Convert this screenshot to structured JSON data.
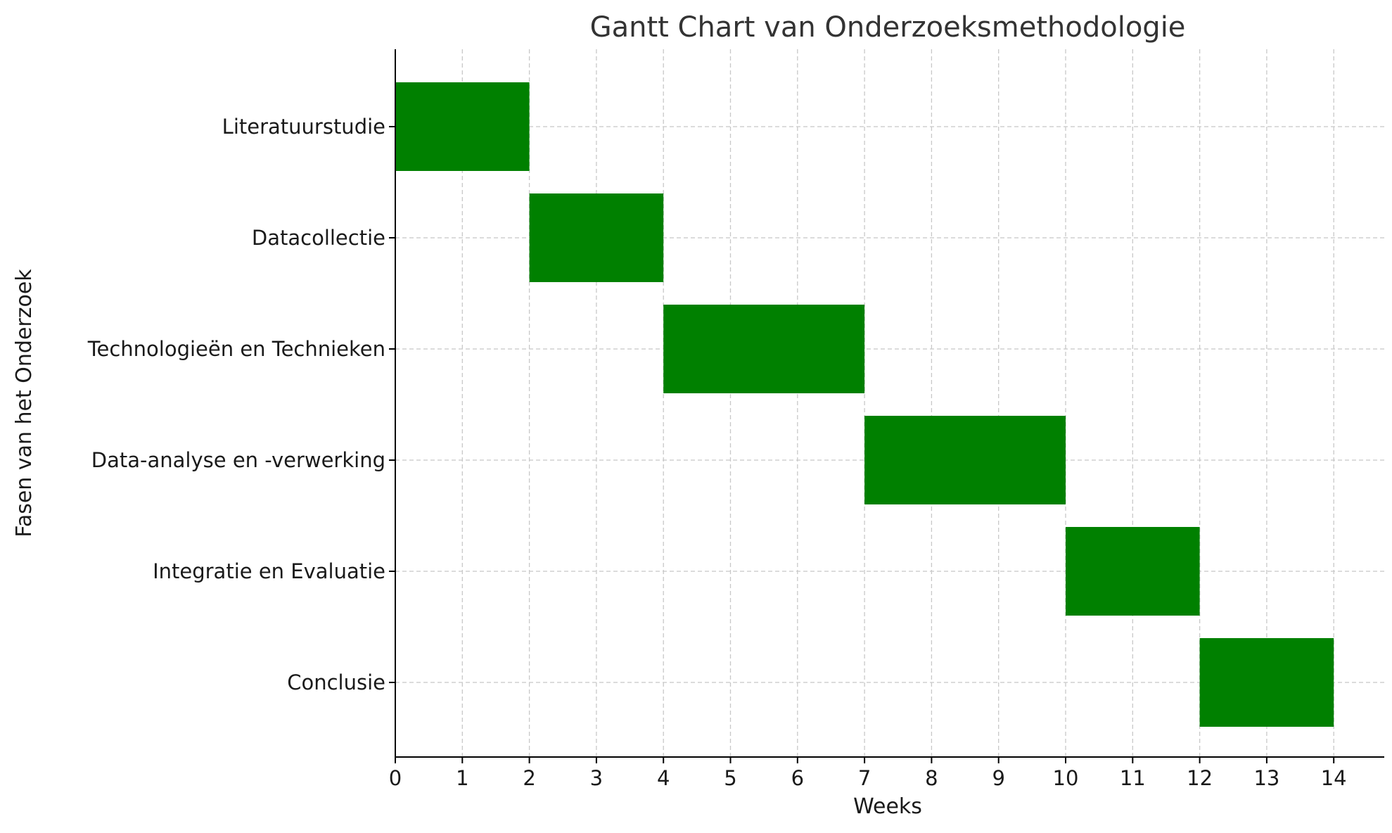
{
  "chart_data": {
    "type": "gantt",
    "title": "Gantt Chart van Onderzoeksmethodologie",
    "xlabel": "Weeks",
    "ylabel": "Fasen van het Onderzoek",
    "xlim": [
      0,
      14.7
    ],
    "xticks": [
      0,
      1,
      2,
      3,
      4,
      5,
      6,
      7,
      8,
      9,
      10,
      11,
      12,
      13,
      14
    ],
    "grid": true,
    "bar_color": "#008000",
    "tasks": [
      {
        "name": "Literatuurstudie",
        "start": 0,
        "end": 2
      },
      {
        "name": "Datacollectie",
        "start": 2,
        "end": 4
      },
      {
        "name": "Technologieën en Technieken",
        "start": 4,
        "end": 7
      },
      {
        "name": "Data-analyse en -verwerking",
        "start": 7,
        "end": 10
      },
      {
        "name": "Integratie en Evaluatie",
        "start": 10,
        "end": 12
      },
      {
        "name": "Conclusie",
        "start": 12,
        "end": 14
      }
    ]
  }
}
